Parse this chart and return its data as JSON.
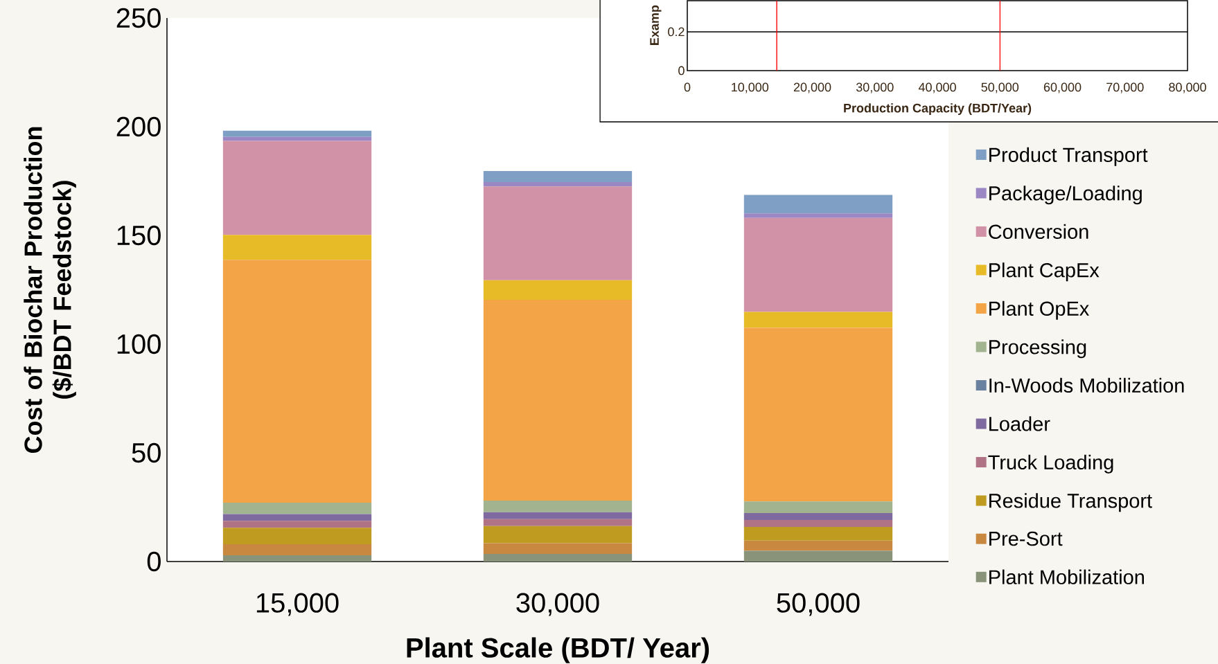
{
  "chart_data": [
    {
      "type": "bar",
      "stacked": true,
      "xlabel": "Plant Scale (BDT/ Year)",
      "ylabel": "Cost of Biochar Production ($/BDT Feedstock)",
      "categories": [
        "15,000",
        "30,000",
        "50,000"
      ],
      "ylim": [
        0,
        250
      ],
      "yticks": [
        0,
        50,
        100,
        150,
        200,
        250
      ],
      "legend": "right",
      "series": [
        {
          "name": "Plant Mobilization",
          "color": "#88937a",
          "values": [
            2.9,
            3.5,
            4.9
          ]
        },
        {
          "name": "Pre-Sort",
          "color": "#c88840",
          "values": [
            5.1,
            4.9,
            4.7
          ]
        },
        {
          "name": "Residue Transport",
          "color": "#bf9b1f",
          "values": [
            7.5,
            7.9,
            6.3
          ]
        },
        {
          "name": "Truck Loading",
          "color": "#b07386",
          "values": [
            3.2,
            3.2,
            3.2
          ]
        },
        {
          "name": "Loader",
          "color": "#7f6aa0",
          "values": [
            3.1,
            3.2,
            3.2
          ]
        },
        {
          "name": "In-Woods Mobilization",
          "color": "#6a82a0",
          "values": [
            0,
            0,
            0
          ]
        },
        {
          "name": "Processing",
          "color": "#a2b48f",
          "values": [
            5.3,
            5.3,
            5.3
          ]
        },
        {
          "name": "Plant OpEx",
          "color": "#f2a446",
          "values": [
            111.7,
            92.4,
            79.9
          ]
        },
        {
          "name": "Plant CapEx",
          "color": "#e6bb27",
          "values": [
            11.4,
            9.0,
            7.3
          ]
        },
        {
          "name": "Conversion",
          "color": "#d192a7",
          "values": [
            43.3,
            43.1,
            43.2
          ]
        },
        {
          "name": "Package/Loading",
          "color": "#9b87c4",
          "values": [
            1.8,
            2.0,
            2.1
          ]
        },
        {
          "name": "Product Transport",
          "color": "#7f9fc4",
          "values": [
            2.9,
            5.1,
            8.5
          ]
        }
      ]
    },
    {
      "type": "line",
      "xlabel": "Production Capacity (BDT/Year)",
      "ylabel": "Examp",
      "xlim": [
        0,
        80000
      ],
      "xticks": [
        0,
        {
          "value": 10000,
          "label": "10,000"
        },
        {
          "value": 20000,
          "label": "20,000"
        },
        {
          "value": 30000,
          "label": "30,000"
        },
        {
          "value": 40000,
          "label": "40,000"
        },
        {
          "value": 50000,
          "label": "50,000"
        },
        {
          "value": 60000,
          "label": "60,000"
        },
        {
          "value": 70000,
          "label": "70,000"
        },
        {
          "value": 80000,
          "label": "80,000"
        }
      ],
      "ylim": [
        0,
        0.36
      ],
      "yticks": [
        0,
        0.2
      ],
      "ref_lines": [
        {
          "axis": "y",
          "value": 0.2,
          "color": "#000000"
        },
        {
          "axis": "x",
          "value": 14300,
          "color": "#ff0000"
        },
        {
          "axis": "x",
          "value": 50000,
          "color": "#ff0000"
        }
      ]
    }
  ]
}
